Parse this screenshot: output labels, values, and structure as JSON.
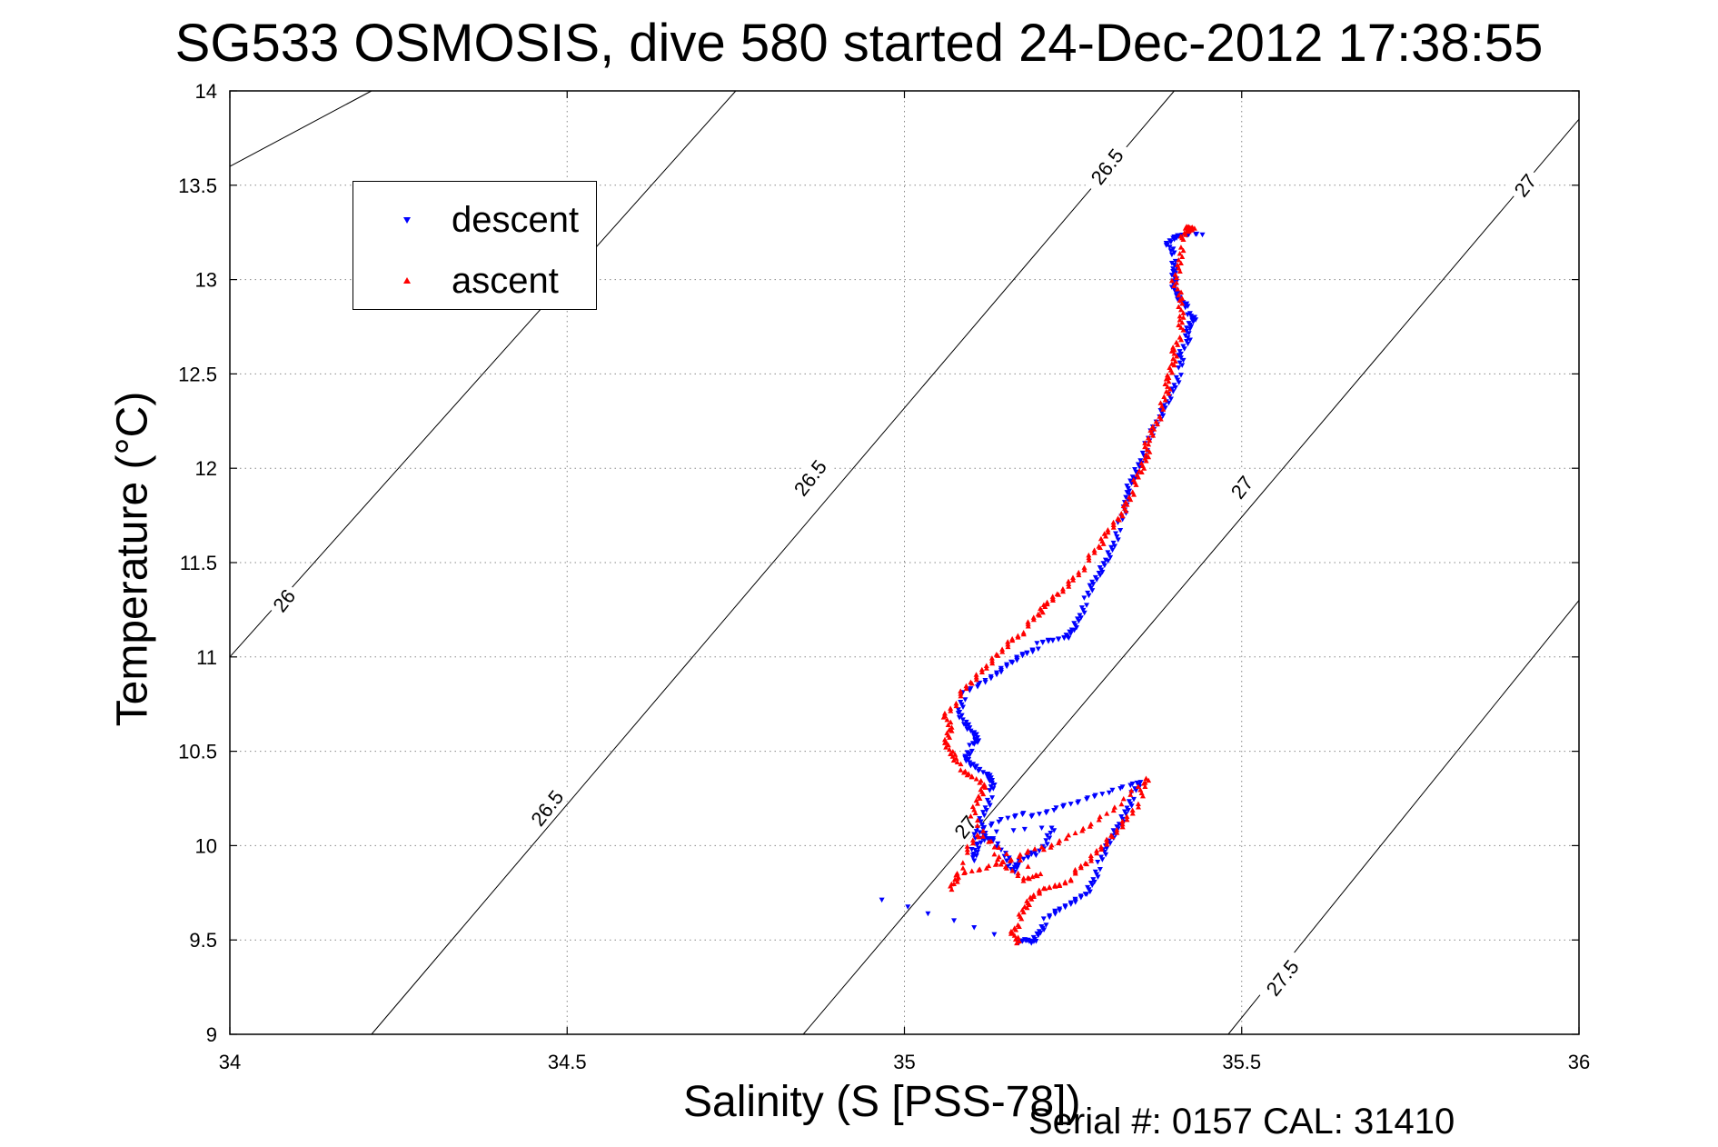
{
  "title": "SG533 OSMOSIS, dive 580 started 24-Dec-2012 17:38:55",
  "footer": "Serial #: 0157  CAL: 31410",
  "chart_data": {
    "type": "scatter",
    "xlabel": "Salinity (S [PSS-78])",
    "ylabel": "Temperature (°C)",
    "xlim": [
      34,
      36
    ],
    "ylim": [
      9,
      14
    ],
    "xticks": [
      34,
      34.5,
      35,
      35.5,
      36
    ],
    "xtick_labels": [
      "34",
      "34.5",
      "35",
      "35.5",
      "36"
    ],
    "yticks": [
      9,
      9.5,
      10,
      10.5,
      11,
      11.5,
      12,
      12.5,
      13,
      13.5,
      14
    ],
    "ytick_labels": [
      "9",
      "9.5",
      "10",
      "10.5",
      "11",
      "11.5",
      "12",
      "12.5",
      "13",
      "13.5",
      "14"
    ],
    "grid": true,
    "legend_position": "top-left",
    "density_contours": [
      {
        "level_label": "26",
        "points": [
          [
            34,
            13.6
          ],
          [
            34.21,
            14.0
          ]
        ]
      },
      {
        "level_label": "26",
        "points": [
          [
            34,
            11.0
          ],
          [
            34.75,
            14.0
          ]
        ]
      },
      {
        "level_label": "26.5",
        "points": [
          [
            34.21,
            9.0
          ],
          [
            35.4,
            14.0
          ]
        ]
      },
      {
        "level_label": "27",
        "points": [
          [
            34.85,
            9.0
          ],
          [
            36.0,
            13.85
          ]
        ]
      },
      {
        "level_label": "27.5",
        "points": [
          [
            35.48,
            9.0
          ],
          [
            36.0,
            11.3
          ]
        ]
      }
    ],
    "contour_labels": [
      {
        "text": "26",
        "x": 34.08,
        "y": 11.3
      },
      {
        "text": "26.5",
        "x": 34.47,
        "y": 10.2
      },
      {
        "text": "26.5",
        "x": 34.86,
        "y": 11.95
      },
      {
        "text": "26.5",
        "x": 35.3,
        "y": 13.6
      },
      {
        "text": "27",
        "x": 35.09,
        "y": 10.1
      },
      {
        "text": "27",
        "x": 35.5,
        "y": 11.9
      },
      {
        "text": "27",
        "x": 35.92,
        "y": 13.5
      },
      {
        "text": "27.5",
        "x": 35.56,
        "y": 9.3
      }
    ],
    "series": [
      {
        "name": "descent",
        "color": "#0000ff",
        "marker": "triangle-down",
        "points": [
          [
            34.97,
            9.7
          ],
          [
            35.17,
            9.48
          ],
          [
            35.18,
            9.5
          ],
          [
            35.19,
            9.49
          ],
          [
            35.2,
            9.55
          ],
          [
            35.21,
            9.6
          ],
          [
            35.23,
            9.65
          ],
          [
            35.25,
            9.7
          ],
          [
            35.27,
            9.75
          ],
          [
            35.28,
            9.82
          ],
          [
            35.29,
            9.9
          ],
          [
            35.3,
            9.98
          ],
          [
            35.31,
            10.06
          ],
          [
            35.32,
            10.12
          ],
          [
            35.33,
            10.2
          ],
          [
            35.34,
            10.27
          ],
          [
            35.35,
            10.33
          ],
          [
            35.3,
            10.28
          ],
          [
            35.26,
            10.24
          ],
          [
            35.22,
            10.2
          ],
          [
            35.18,
            10.16
          ],
          [
            35.14,
            10.12
          ],
          [
            35.1,
            10.06
          ],
          [
            35.22,
            10.1
          ],
          [
            35.21,
            10.02
          ],
          [
            35.19,
            9.95
          ],
          [
            35.17,
            9.9
          ],
          [
            35.16,
            9.86
          ],
          [
            35.15,
            9.95
          ],
          [
            35.13,
            10.05
          ],
          [
            35.12,
            10.05
          ],
          [
            35.11,
            9.98
          ],
          [
            35.1,
            9.92
          ],
          [
            35.11,
            10.1
          ],
          [
            35.12,
            10.2
          ],
          [
            35.13,
            10.28
          ],
          [
            35.13,
            10.34
          ],
          [
            35.12,
            10.38
          ],
          [
            35.1,
            10.43
          ],
          [
            35.09,
            10.48
          ],
          [
            35.1,
            10.52
          ],
          [
            35.11,
            10.55
          ],
          [
            35.1,
            10.6
          ],
          [
            35.09,
            10.65
          ],
          [
            35.08,
            10.72
          ],
          [
            35.09,
            10.8
          ],
          [
            35.12,
            10.86
          ],
          [
            35.14,
            10.92
          ],
          [
            35.16,
            10.98
          ],
          [
            35.18,
            11.03
          ],
          [
            35.2,
            11.06
          ],
          [
            35.22,
            11.08
          ],
          [
            35.24,
            11.1
          ],
          [
            35.25,
            11.15
          ],
          [
            35.26,
            11.22
          ],
          [
            35.27,
            11.3
          ],
          [
            35.28,
            11.38
          ],
          [
            35.29,
            11.45
          ],
          [
            35.3,
            11.52
          ],
          [
            35.31,
            11.6
          ],
          [
            35.32,
            11.7
          ],
          [
            35.33,
            11.8
          ],
          [
            35.33,
            11.88
          ],
          [
            35.34,
            11.96
          ],
          [
            35.35,
            12.04
          ],
          [
            35.36,
            12.12
          ],
          [
            35.37,
            12.2
          ],
          [
            35.38,
            12.28
          ],
          [
            35.39,
            12.36
          ],
          [
            35.4,
            12.44
          ],
          [
            35.41,
            12.52
          ],
          [
            35.41,
            12.6
          ],
          [
            35.42,
            12.68
          ],
          [
            35.42,
            12.75
          ],
          [
            35.43,
            12.8
          ],
          [
            35.42,
            12.84
          ],
          [
            35.41,
            12.88
          ],
          [
            35.4,
            12.94
          ],
          [
            35.4,
            13.0
          ],
          [
            35.4,
            13.06
          ],
          [
            35.4,
            13.12
          ],
          [
            35.39,
            13.18
          ],
          [
            35.4,
            13.22
          ],
          [
            35.41,
            13.24
          ],
          [
            35.44,
            13.25
          ]
        ]
      },
      {
        "name": "ascent",
        "color": "#ff0000",
        "marker": "triangle-up",
        "points": [
          [
            35.17,
            9.49
          ],
          [
            35.16,
            9.55
          ],
          [
            35.17,
            9.6
          ],
          [
            35.18,
            9.67
          ],
          [
            35.19,
            9.73
          ],
          [
            35.21,
            9.78
          ],
          [
            35.23,
            9.8
          ],
          [
            35.25,
            9.84
          ],
          [
            35.27,
            9.9
          ],
          [
            35.29,
            9.98
          ],
          [
            35.31,
            10.06
          ],
          [
            35.33,
            10.15
          ],
          [
            35.35,
            10.25
          ],
          [
            35.36,
            10.35
          ],
          [
            35.32,
            10.22
          ],
          [
            35.28,
            10.12
          ],
          [
            35.24,
            10.05
          ],
          [
            35.2,
            9.98
          ],
          [
            35.16,
            9.92
          ],
          [
            35.12,
            9.88
          ],
          [
            35.08,
            9.85
          ],
          [
            35.07,
            9.78
          ],
          [
            35.09,
            9.95
          ],
          [
            35.11,
            10.05
          ],
          [
            35.2,
            9.85
          ],
          [
            35.18,
            9.82
          ],
          [
            35.15,
            9.9
          ],
          [
            35.13,
            9.98
          ],
          [
            35.1,
            10.15
          ],
          [
            35.11,
            10.25
          ],
          [
            35.12,
            10.32
          ],
          [
            35.1,
            10.38
          ],
          [
            35.08,
            10.42
          ],
          [
            35.07,
            10.48
          ],
          [
            35.06,
            10.55
          ],
          [
            35.07,
            10.62
          ],
          [
            35.06,
            10.7
          ],
          [
            35.08,
            10.78
          ],
          [
            35.1,
            10.86
          ],
          [
            35.12,
            10.94
          ],
          [
            35.14,
            11.02
          ],
          [
            35.16,
            11.1
          ],
          [
            35.18,
            11.15
          ],
          [
            35.2,
            11.22
          ],
          [
            35.21,
            11.28
          ],
          [
            35.23,
            11.34
          ],
          [
            35.25,
            11.42
          ],
          [
            35.27,
            11.5
          ],
          [
            35.29,
            11.58
          ],
          [
            35.3,
            11.66
          ],
          [
            35.32,
            11.74
          ],
          [
            35.33,
            11.82
          ],
          [
            35.34,
            11.9
          ],
          [
            35.35,
            11.98
          ],
          [
            35.36,
            12.06
          ],
          [
            35.36,
            12.14
          ],
          [
            35.37,
            12.22
          ],
          [
            35.38,
            12.3
          ],
          [
            35.39,
            12.4
          ],
          [
            35.39,
            12.48
          ],
          [
            35.4,
            12.56
          ],
          [
            35.4,
            12.64
          ],
          [
            35.41,
            12.72
          ],
          [
            35.41,
            12.8
          ],
          [
            35.41,
            12.9
          ],
          [
            35.4,
            13.0
          ],
          [
            35.41,
            13.1
          ],
          [
            35.41,
            13.2
          ],
          [
            35.42,
            13.25
          ],
          [
            35.42,
            13.28
          ],
          [
            35.43,
            13.27
          ]
        ]
      }
    ]
  }
}
